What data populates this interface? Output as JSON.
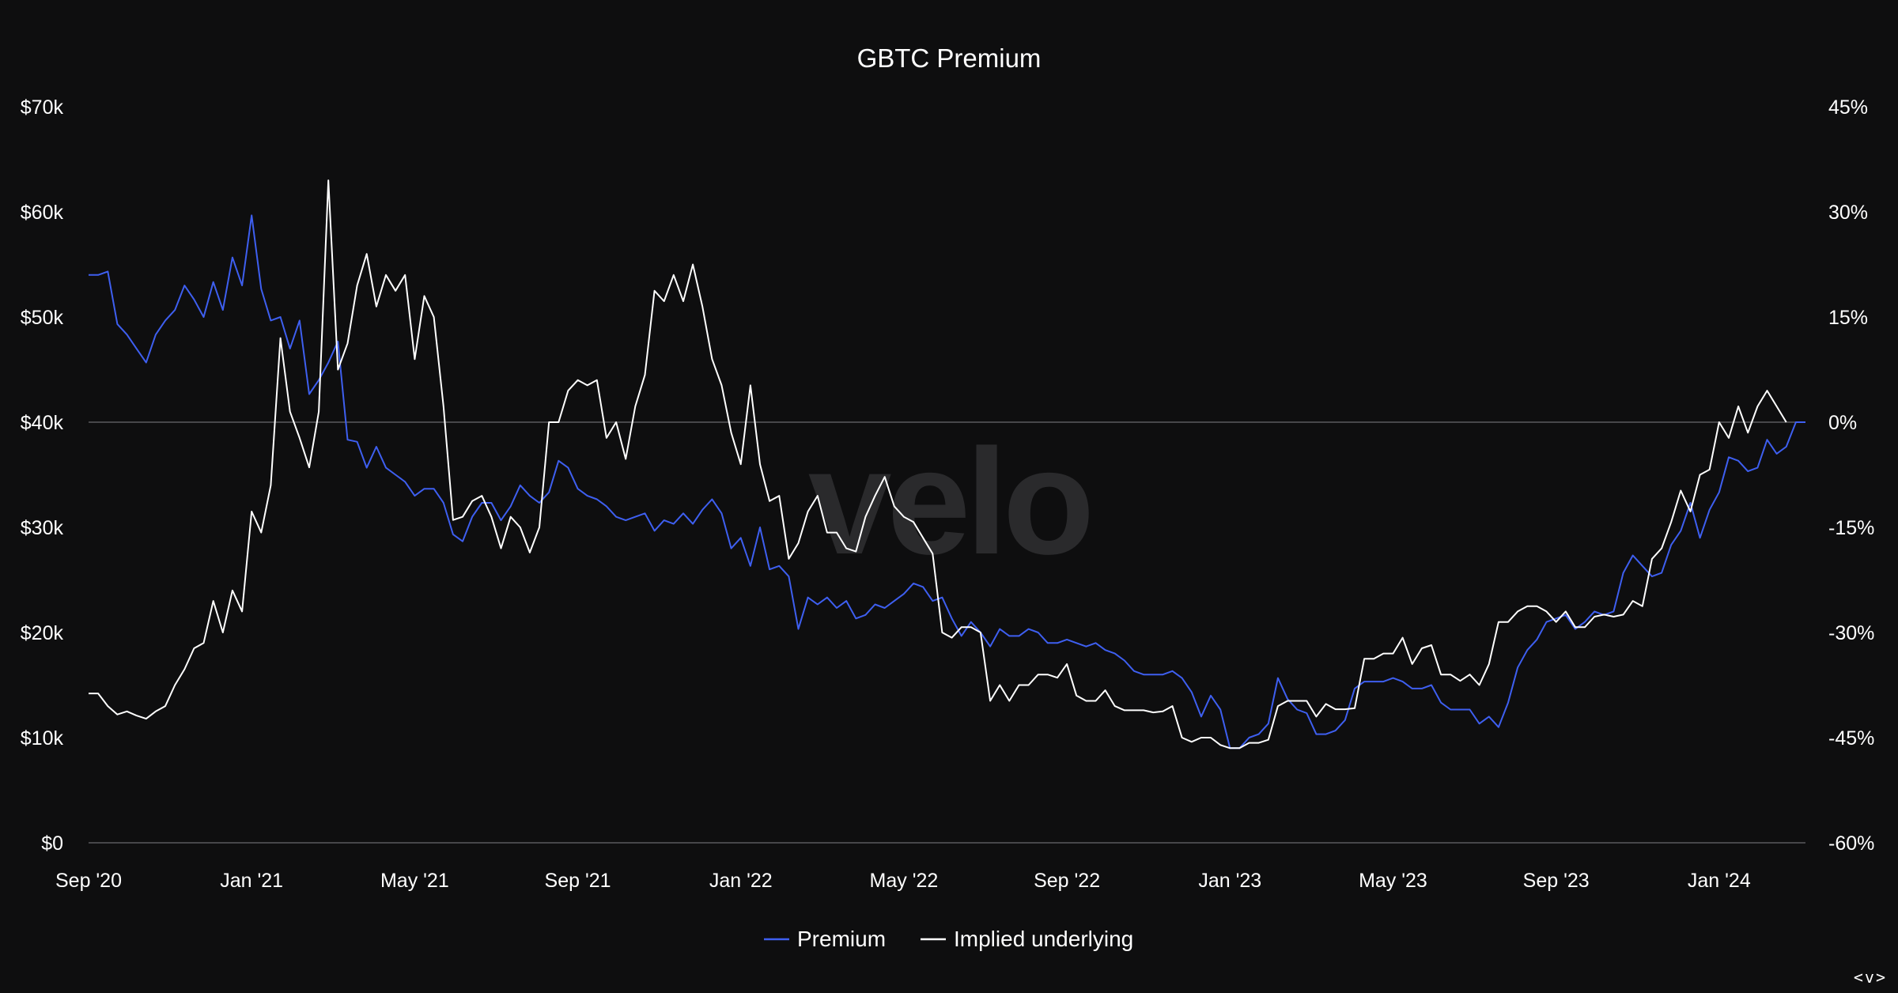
{
  "watermark": "velo",
  "colors": {
    "background": "#0e0e0f",
    "premium": "#3e5ff0",
    "underlying": "#ffffff",
    "zero_line": "#5a5a5e",
    "watermark": "#2a2a2c"
  },
  "nav_hint": "<v>",
  "chart_data": {
    "type": "line",
    "title": "GBTC Premium",
    "xlabel": "",
    "ylabel_left": "",
    "ylabel_right": "",
    "x_ticks": [
      "Sep '20",
      "Jan '21",
      "May '21",
      "Sep '21",
      "Jan '22",
      "May '22",
      "Sep '22",
      "Jan '23",
      "May '23",
      "Sep '23",
      "Jan '24"
    ],
    "x_tick_positions_weeks": [
      0,
      17,
      34,
      51,
      68,
      85,
      102,
      119,
      136,
      153,
      170
    ],
    "y_left": {
      "ticks": [
        "$0",
        "$10k",
        "$20k",
        "$30k",
        "$40k",
        "$50k",
        "$60k",
        "$70k"
      ],
      "range": [
        0,
        70000
      ]
    },
    "y_right": {
      "ticks": [
        "-60%",
        "-45%",
        "-30%",
        "-15%",
        "0%",
        "15%",
        "30%",
        "45%"
      ],
      "range": [
        -60,
        45
      ]
    },
    "reference_line": {
      "axis": "right",
      "value": 0
    },
    "legend": {
      "placement": "bottom-center",
      "items": [
        "Premium",
        "Implied underlying"
      ]
    },
    "grid": false,
    "series": [
      {
        "name": "Premium",
        "axis": "right",
        "unit": "%",
        "values": [
          21,
          21,
          21.5,
          14,
          12.5,
          10.5,
          8.5,
          12.5,
          14.5,
          16,
          19.5,
          17.5,
          15,
          20,
          16,
          23.5,
          19.5,
          29.5,
          19,
          14.5,
          15,
          10.5,
          14.5,
          4,
          6,
          8.5,
          11.5,
          -2.5,
          -2.8,
          -6.5,
          -3.5,
          -6.5,
          -7.5,
          -8.5,
          -10.5,
          -9.5,
          -9.5,
          -11.5,
          -16,
          -17,
          -13.5,
          -11.5,
          -11.5,
          -14,
          -12,
          -9,
          -10.5,
          -11.5,
          -10,
          -5.5,
          -6.5,
          -9.5,
          -10.5,
          -11,
          -12,
          -13.5,
          -14,
          -13.5,
          -13,
          -15.5,
          -14,
          -14.5,
          -13,
          -14.5,
          -12.5,
          -11,
          -13,
          -18,
          -16.5,
          -20.5,
          -15,
          -21,
          -20.5,
          -22,
          -29.5,
          -25,
          -26,
          -25,
          -26.5,
          -25.5,
          -28,
          -27.5,
          -26,
          -26.5,
          -25.5,
          -24.5,
          -23,
          -23.5,
          -25.5,
          -25,
          -28,
          -30.5,
          -28.5,
          -30,
          -32,
          -29.5,
          -30.5,
          -30.5,
          -29.5,
          -30,
          -31.5,
          -31.5,
          -31,
          -31.5,
          -32,
          -31.5,
          -32.5,
          -33,
          -34,
          -35.5,
          -36,
          -36,
          -36,
          -35.5,
          -36.5,
          -38.5,
          -42,
          -39,
          -41,
          -46.5,
          -46.5,
          -45,
          -44.5,
          -43,
          -36.5,
          -39.5,
          -41,
          -41.5,
          -44.5,
          -44.5,
          -44,
          -42.5,
          -38,
          -37,
          -37,
          -37,
          -36.5,
          -37,
          -38,
          -38,
          -37.5,
          -40,
          -41,
          -41,
          -41,
          -43,
          -42,
          -43.5,
          -40,
          -35,
          -32.5,
          -31,
          -28.5,
          -28,
          -27.5,
          -29.5,
          -28.5,
          -27,
          -27.5,
          -27,
          -21.5,
          -19,
          -20.5,
          -22,
          -21.5,
          -17.5,
          -15.5,
          -11.5,
          -16.5,
          -12.5,
          -10,
          -5,
          -5.5,
          -7,
          -6.5,
          -2.5,
          -4.5,
          -3.5,
          0,
          0
        ]
      },
      {
        "name": "Implied underlying",
        "axis": "left",
        "unit": "$",
        "values": [
          14200,
          14200,
          13000,
          12200,
          12500,
          12100,
          11800,
          12500,
          13000,
          15000,
          16500,
          18500,
          19000,
          23000,
          20000,
          24000,
          22000,
          31500,
          29500,
          34000,
          48000,
          41000,
          38500,
          35700,
          41000,
          63000,
          45000,
          47500,
          53000,
          56000,
          51000,
          54000,
          52500,
          54000,
          46000,
          52000,
          50000,
          41500,
          30700,
          31000,
          32500,
          33000,
          31000,
          28000,
          31000,
          30000,
          27600,
          30000,
          40000,
          40000,
          43000,
          44000,
          43500,
          44000,
          38500,
          40000,
          36500,
          41500,
          44500,
          52500,
          51500,
          54000,
          51500,
          55000,
          51000,
          46000,
          43500,
          39000,
          36000,
          43500,
          36000,
          32500,
          33000,
          27000,
          28500,
          31500,
          33000,
          29500,
          29500,
          28000,
          27700,
          31000,
          33000,
          34800,
          32000,
          31000,
          30500,
          29000,
          27500,
          20000,
          19500,
          20500,
          20500,
          20000,
          13500,
          15000,
          13500,
          15000,
          15000,
          16000,
          16000,
          15700,
          17000,
          14000,
          13500,
          13500,
          14500,
          13000,
          12600,
          12600,
          12600,
          12400,
          12500,
          13000,
          10000,
          9600,
          10000,
          10000,
          9300,
          9000,
          9000,
          9500,
          9500,
          9800,
          13000,
          13500,
          13500,
          13500,
          12000,
          13200,
          12700,
          12700,
          12800,
          17500,
          17500,
          18000,
          18000,
          19500,
          17000,
          18500,
          18800,
          16000,
          16000,
          15400,
          16000,
          15000,
          17000,
          21000,
          21000,
          22000,
          22500,
          22500,
          22000,
          21000,
          22000,
          20500,
          20500,
          21500,
          21700,
          21500,
          21700,
          23000,
          22500,
          27000,
          28000,
          30500,
          33500,
          31500,
          35000,
          35500,
          40000,
          38500,
          41500,
          39000,
          41500,
          43000,
          41500,
          40000
        ]
      }
    ]
  }
}
